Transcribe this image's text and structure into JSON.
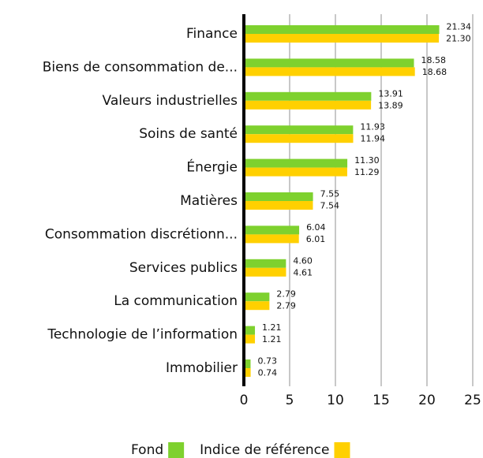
{
  "chart_data": {
    "type": "bar",
    "orientation": "horizontal",
    "categories": [
      "Finance",
      "Biens de consommation de...",
      "Valeurs industrielles",
      "Soins de santé",
      "Énergie",
      "Matières",
      "Consommation discrétionn...",
      "Services publics",
      "La communication",
      "Technologie de l’information",
      "Immobilier"
    ],
    "series": [
      {
        "name": "Fond",
        "color": "#7ed12e",
        "values": [
          21.34,
          18.58,
          13.91,
          11.93,
          11.3,
          7.55,
          6.04,
          4.6,
          2.79,
          1.21,
          0.73
        ],
        "value_labels": [
          "21.34",
          "18.58",
          "13.91",
          "11.93",
          "11.30",
          "7.55",
          "6.04",
          "4.60",
          "2.79",
          "1.21",
          "0.73"
        ]
      },
      {
        "name": "Indice de référence",
        "color": "#ffd000",
        "values": [
          21.3,
          18.68,
          13.89,
          11.94,
          11.29,
          7.54,
          6.01,
          4.61,
          2.79,
          1.21,
          0.74
        ],
        "value_labels": [
          "21.30",
          "18.68",
          "13.89",
          "11.94",
          "11.29",
          "7.54",
          "6.01",
          "4.61",
          "2.79",
          "1.21",
          "0.74"
        ]
      }
    ],
    "xlim": [
      0,
      25
    ],
    "xticks": [
      0,
      5,
      10,
      15,
      20,
      25
    ],
    "grid": true
  }
}
